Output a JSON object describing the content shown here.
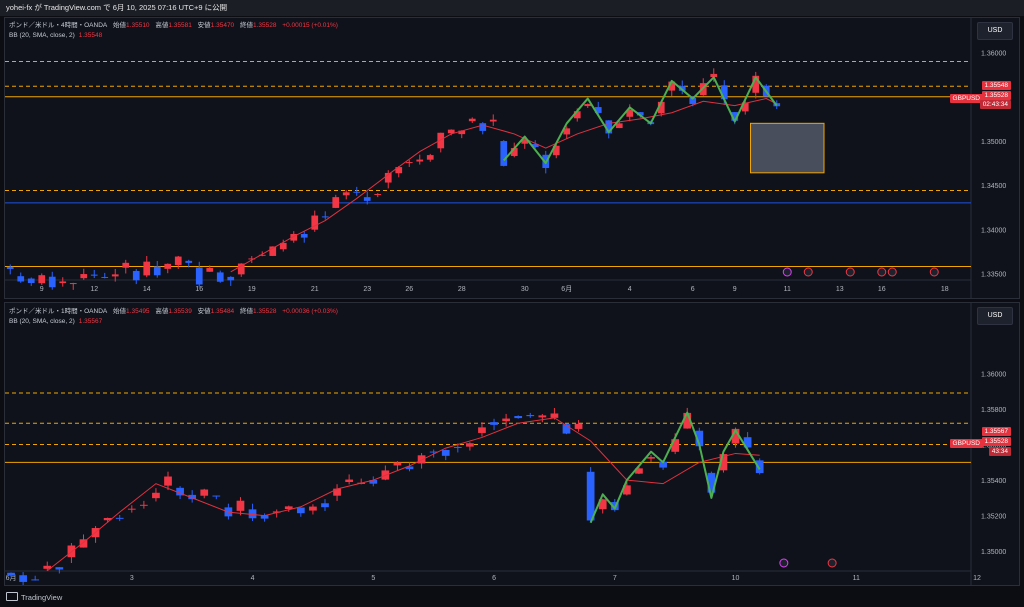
{
  "header": {
    "text": "yohei-fx が TradingView.com で 6月 10, 2025 07:16 UTC+9 に公開"
  },
  "footer": {
    "brand": "TradingView"
  },
  "colors": {
    "up": "#f23645",
    "down": "#2962ff",
    "bb": "#e0313f",
    "wave": "#4caf50",
    "level": "#f0a500",
    "support": "#1e53e5",
    "bg": "#0f121a"
  },
  "panels": [
    {
      "legend1": "ポンド／米ドル・4時間・OANDA",
      "legend1_open_label": "始値",
      "legend1_open": "1.35510",
      "legend1_high_label": "高値",
      "legend1_high": "1.35581",
      "legend1_low_label": "安値",
      "legend1_low": "1.35470",
      "legend1_close_label": "終値",
      "legend1_close": "1.35528",
      "legend1_change": "+0.00015 (+0.01%)",
      "legend2": "BB (20, SMA, close, 2)",
      "legend2_value": "1.35548",
      "currency": "USD",
      "price_tags": {
        "bb": "1.35548",
        "symbol": "GBPUSD",
        "last": "1.35528",
        "countdown": "02:43:34"
      }
    },
    {
      "legend1": "ポンド／米ドル・1時間・OANDA",
      "legend1_open_label": "始値",
      "legend1_open": "1.35495",
      "legend1_high_label": "高値",
      "legend1_high": "1.35539",
      "legend1_low_label": "安値",
      "legend1_low": "1.35484",
      "legend1_close_label": "終値",
      "legend1_close": "1.35528",
      "legend1_change": "+0.00036 (+0.03%)",
      "legend2": "BB (20, SMA, close, 2)",
      "legend2_value": "1.35567",
      "currency": "USD",
      "price_tags": {
        "bb": "1.35567",
        "symbol": "GBPUSD",
        "last": "1.35528",
        "countdown": "43:34"
      }
    }
  ],
  "chart_data": [
    {
      "type": "candlestick",
      "title": "ポンド／米ドル・4時間・OANDA",
      "ylim": [
        1.3345,
        1.3612
      ],
      "y_ticks": [
        "1.36000",
        "1.35500",
        "1.35000",
        "1.34500",
        "1.34000",
        "1.33500"
      ],
      "y_tick_values": [
        1.36,
        1.355,
        1.35,
        1.345,
        1.34,
        1.335
      ],
      "x_ticks": [
        "9",
        "12",
        "14",
        "16",
        "19",
        "21",
        "23",
        "26",
        "28",
        "30",
        "6月",
        "4",
        "6",
        "9",
        "11",
        "13",
        "16",
        "18"
      ],
      "x_tick_index": [
        3,
        8,
        13,
        18,
        23,
        29,
        34,
        38,
        43,
        49,
        53,
        59,
        65,
        69,
        74,
        79,
        83,
        89
      ],
      "horizontal_levels": [
        {
          "value": 1.359,
          "style": "dashed",
          "color": "#f0a500"
        },
        {
          "value": 1.3562,
          "style": "dashed",
          "color": "#f0a500"
        },
        {
          "value": 1.355,
          "style": "solid",
          "color": "#f0a500"
        },
        {
          "value": 1.3444,
          "style": "dashed",
          "color": "#f0a500"
        },
        {
          "value": 1.343,
          "style": "solid",
          "color": "#1e53e5"
        },
        {
          "value": 1.3358,
          "style": "solid",
          "color": "#f0a500"
        }
      ],
      "rectangle": {
        "x_from": 71,
        "x_to": 77,
        "y_from": 1.352,
        "y_to": 1.3464
      },
      "bb_mid": [
        [
          21,
          1.3352
        ],
        [
          24,
          1.3372
        ],
        [
          27,
          1.3392
        ],
        [
          30,
          1.341
        ],
        [
          33,
          1.3435
        ],
        [
          36,
          1.3462
        ],
        [
          39,
          1.3488
        ],
        [
          42,
          1.3508
        ],
        [
          45,
          1.3518
        ],
        [
          48,
          1.3508
        ],
        [
          51,
          1.3492
        ],
        [
          54,
          1.3508
        ],
        [
          57,
          1.352
        ],
        [
          60,
          1.3525
        ],
        [
          63,
          1.3532
        ],
        [
          66,
          1.3545
        ],
        [
          69,
          1.354
        ],
        [
          72,
          1.3548
        ],
        [
          73,
          1.3542
        ]
      ],
      "wave": [
        [
          47,
          1.3478
        ],
        [
          49,
          1.3505
        ],
        [
          51,
          1.3475
        ],
        [
          53,
          1.352
        ],
        [
          55,
          1.3548
        ],
        [
          57,
          1.351
        ],
        [
          59,
          1.3538
        ],
        [
          61,
          1.352
        ],
        [
          63,
          1.3568
        ],
        [
          65,
          1.3548
        ],
        [
          67,
          1.3572
        ],
        [
          69,
          1.3522
        ],
        [
          71,
          1.3572
        ],
        [
          73,
          1.354
        ]
      ]
    },
    {
      "type": "candlestick",
      "title": "ポンド／米ドル・1時間・OANDA",
      "ylim": [
        1.349,
        1.3625
      ],
      "y_ticks": [
        "1.36000",
        "1.35800",
        "1.35600",
        "1.35400",
        "1.35200",
        "1.35000"
      ],
      "y_tick_values": [
        1.36,
        1.358,
        1.356,
        1.354,
        1.352,
        1.35
      ],
      "x_ticks": [
        "6月",
        "3",
        "4",
        "5",
        "6",
        "7",
        "10",
        "11",
        "12"
      ],
      "x_tick_index": [
        0,
        10,
        20,
        30,
        40,
        50,
        60,
        70,
        80
      ],
      "horizontal_levels": [
        {
          "value": 1.3589,
          "style": "dashed",
          "color": "#f0a500"
        },
        {
          "value": 1.3572,
          "style": "dashed",
          "color": "#f0a500"
        },
        {
          "value": 1.356,
          "style": "dashed",
          "color": "#f0a500"
        },
        {
          "value": 1.355,
          "style": "solid",
          "color": "#f0a500"
        }
      ],
      "bb_mid": [
        [
          3,
          1.3489
        ],
        [
          6,
          1.3505
        ],
        [
          9,
          1.3522
        ],
        [
          12,
          1.3538
        ],
        [
          15,
          1.353
        ],
        [
          18,
          1.3522
        ],
        [
          21,
          1.352
        ],
        [
          24,
          1.3525
        ],
        [
          27,
          1.3535
        ],
        [
          30,
          1.354
        ],
        [
          33,
          1.3548
        ],
        [
          36,
          1.3558
        ],
        [
          39,
          1.3564
        ],
        [
          42,
          1.3572
        ],
        [
          45,
          1.3575
        ],
        [
          48,
          1.3562
        ],
        [
          51,
          1.354
        ],
        [
          54,
          1.3538
        ],
        [
          57,
          1.355
        ],
        [
          60,
          1.3555
        ],
        [
          62,
          1.3554
        ]
      ],
      "wave": [
        [
          48,
          1.3516
        ],
        [
          49,
          1.3532
        ],
        [
          50,
          1.3524
        ],
        [
          51,
          1.354
        ],
        [
          53,
          1.3556
        ],
        [
          54,
          1.355
        ],
        [
          56,
          1.3578
        ],
        [
          57,
          1.356
        ],
        [
          58,
          1.353
        ],
        [
          59,
          1.3556
        ],
        [
          60,
          1.3568
        ],
        [
          62,
          1.3546
        ]
      ]
    }
  ]
}
